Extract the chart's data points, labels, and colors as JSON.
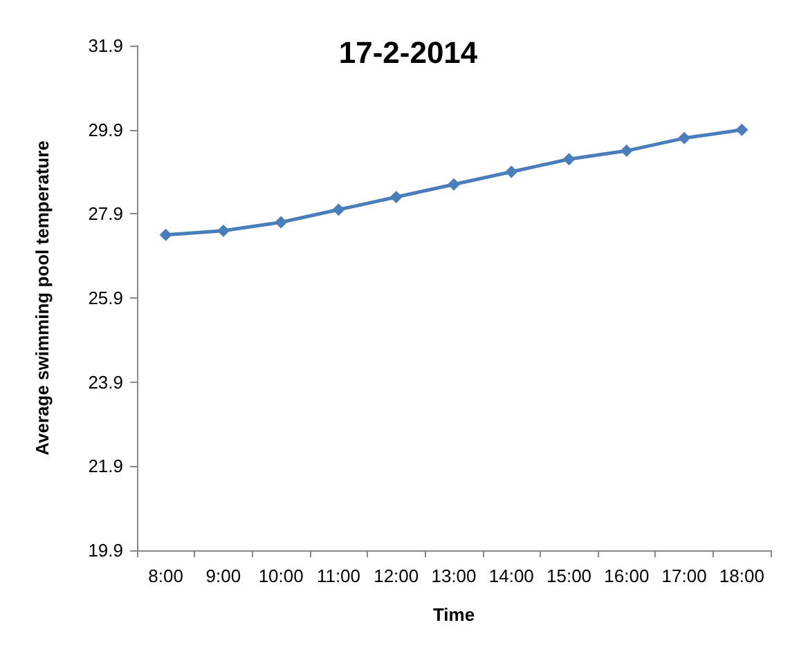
{
  "chart_data": {
    "type": "line",
    "title": "17-2-2014",
    "xlabel": "Time",
    "ylabel": "Average swimming pool temperature",
    "categories": [
      "8:00",
      "9:00",
      "10:00",
      "11:00",
      "12:00",
      "13:00",
      "14:00",
      "15:00",
      "16:00",
      "17:00",
      "18:00"
    ],
    "series": [
      {
        "color": "#4a7ebb",
        "values": [
          27.4,
          27.5,
          27.7,
          28.0,
          28.3,
          28.6,
          28.9,
          29.2,
          29.4,
          29.7,
          29.9
        ]
      }
    ],
    "ylim": [
      19.9,
      31.9
    ],
    "yticks": [
      19.9,
      21.9,
      23.9,
      25.9,
      27.9,
      29.9,
      31.9
    ],
    "grid": false,
    "marker": "diamond",
    "line_style": "solid"
  }
}
